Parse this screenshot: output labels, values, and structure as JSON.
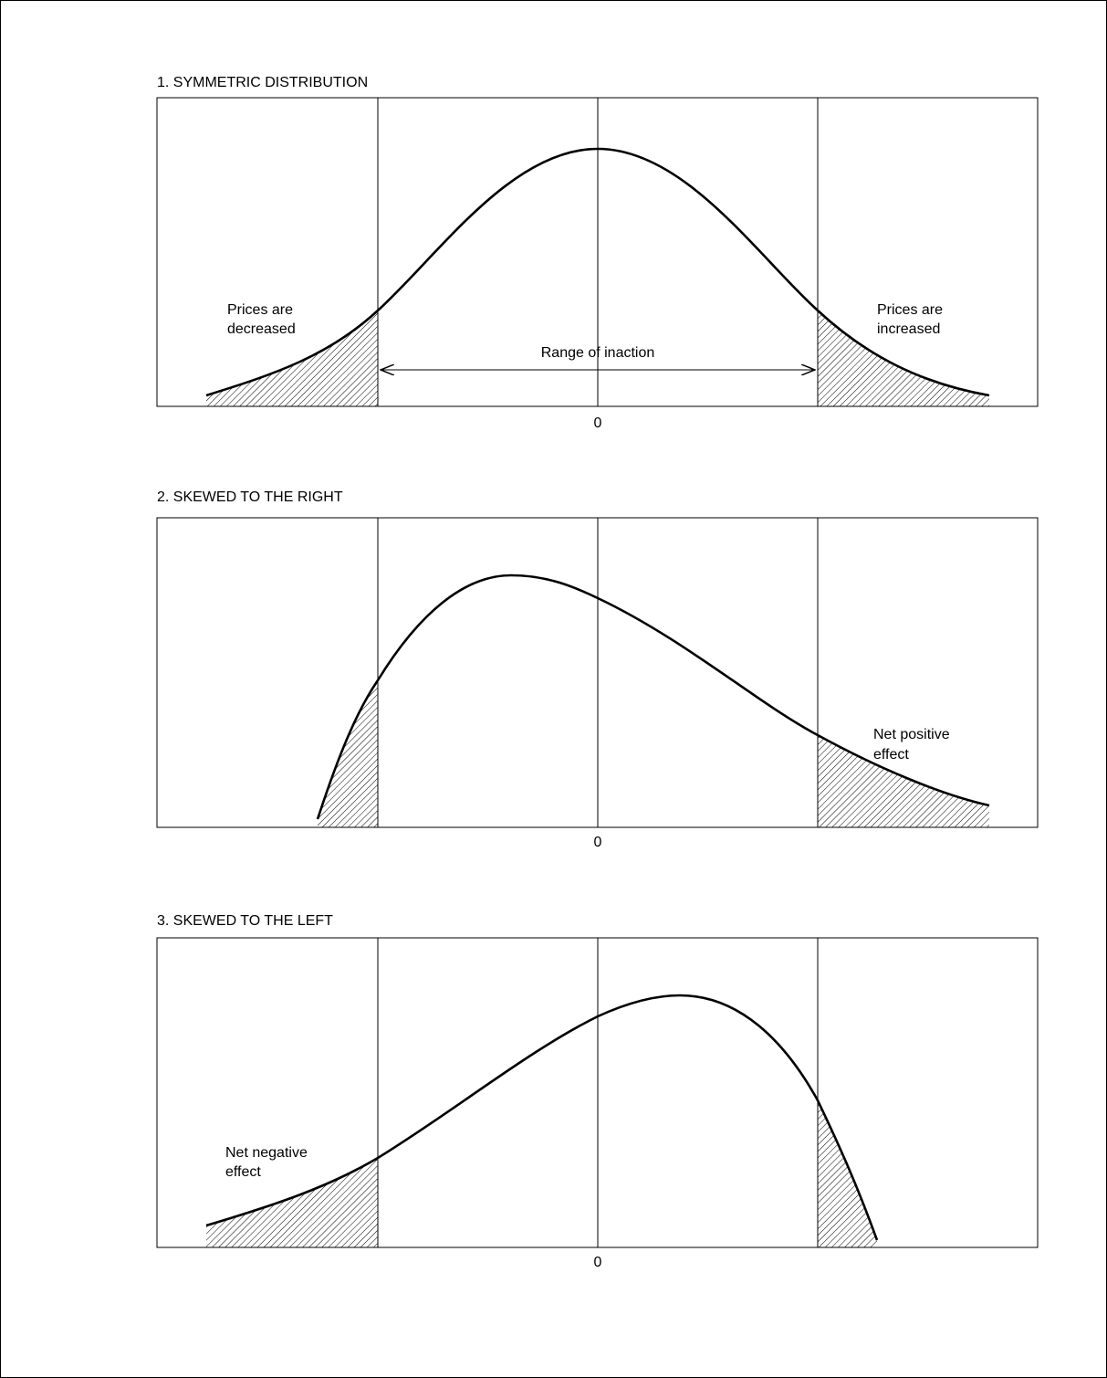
{
  "panels": [
    {
      "title": "1. SYMMETRIC DISTRIBUTION",
      "axis_label": "0",
      "annotations": [
        [
          "Prices are",
          "decreased"
        ],
        [
          "Prices are",
          "increased"
        ],
        [
          "Range of inaction"
        ]
      ]
    },
    {
      "title": "2. SKEWED TO THE RIGHT",
      "axis_label": "0",
      "annotations": [
        [
          "Net positive",
          "effect"
        ]
      ]
    },
    {
      "title": "3. SKEWED TO THE LEFT",
      "axis_label": "0",
      "annotations": [
        [
          "Net negative",
          "effect"
        ]
      ]
    }
  ]
}
